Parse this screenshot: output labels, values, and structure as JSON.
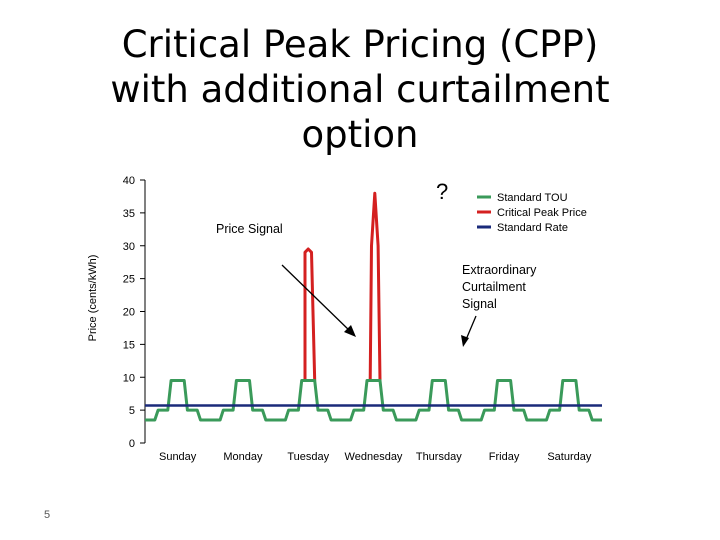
{
  "slide": {
    "title_lines": [
      "Critical Peak Pricing (CPP)",
      "with additional curtailment",
      "option"
    ],
    "page_number": "5"
  },
  "chart_data": {
    "type": "line",
    "ylabel": "Price (cents/kWh)",
    "ylim": [
      0,
      40
    ],
    "yticks": [
      0,
      5,
      10,
      15,
      20,
      25,
      30,
      35,
      40
    ],
    "categories": [
      "Sunday",
      "Monday",
      "Tuesday",
      "Wednesday",
      "Thursday",
      "Friday",
      "Saturday"
    ],
    "colors": {
      "tou": "#3a9a5a",
      "cpp": "#d42020",
      "rate": "#1a2a7a"
    },
    "legend_position": "top-right",
    "series": [
      {
        "name": "Standard TOU",
        "x": [
          0,
          0.15,
          0.2,
          0.35,
          0.4,
          0.6,
          0.65,
          0.8,
          0.85,
          1.15,
          1.2,
          1.35,
          1.4,
          1.6,
          1.65,
          1.8,
          1.85,
          2.15,
          2.2,
          2.35,
          2.4,
          2.6,
          2.65,
          2.8,
          2.85,
          3.15,
          3.2,
          3.35,
          3.4,
          3.6,
          3.65,
          3.8,
          3.85,
          4.15,
          4.2,
          4.35,
          4.4,
          4.6,
          4.65,
          4.8,
          4.85,
          5.15,
          5.2,
          5.35,
          5.4,
          5.6,
          5.65,
          5.8,
          5.85,
          6.15,
          6.2,
          6.35,
          6.4,
          6.6,
          6.65,
          6.8,
          6.85,
          7.0
        ],
        "values": [
          3.5,
          3.5,
          5,
          5,
          9.5,
          9.5,
          5,
          5,
          3.5,
          3.5,
          5,
          5,
          9.5,
          9.5,
          5,
          5,
          3.5,
          3.5,
          5,
          5,
          9.5,
          9.5,
          5,
          5,
          3.5,
          3.5,
          5,
          5,
          9.5,
          9.5,
          5,
          5,
          3.5,
          3.5,
          5,
          5,
          9.5,
          9.5,
          5,
          5,
          3.5,
          3.5,
          5,
          5,
          9.5,
          9.5,
          5,
          5,
          3.5,
          3.5,
          5,
          5,
          9.5,
          9.5,
          5,
          5,
          3.5,
          3.5
        ]
      },
      {
        "name": "Critical Peak Price",
        "x": [
          2.4,
          2.45,
          2.45,
          2.5,
          2.55,
          2.6
        ],
        "values": [
          9.5,
          9.5,
          29,
          29.5,
          29,
          9.5
        ]
      },
      {
        "name": "Critical Peak Price",
        "x": [
          3.4,
          3.45,
          3.47,
          3.52,
          3.57,
          3.6
        ],
        "values": [
          9.5,
          9.5,
          30,
          38,
          30,
          9.5
        ]
      },
      {
        "name": "Standard Rate",
        "x": [
          0,
          7
        ],
        "values": [
          5.7,
          5.7
        ]
      }
    ],
    "annotations": {
      "price_signal": "Price Signal",
      "question_mark": "?",
      "curtailment_lines": [
        "Extraordinary",
        "Curtailment",
        "Signal"
      ]
    }
  }
}
